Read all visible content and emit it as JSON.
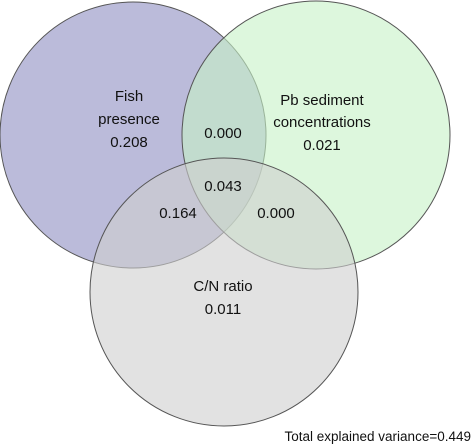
{
  "diagram": {
    "type": "venn",
    "sets": [
      {
        "key": "fish",
        "label_line1": "Fish",
        "label_line2": "presence",
        "value": "0.208",
        "fill": "#8e8ec2"
      },
      {
        "key": "pb",
        "label_line1": "Pb sediment",
        "label_line2": "concentrations",
        "value": "0.021",
        "fill": "#c6f2c6"
      },
      {
        "key": "cn",
        "label_line1": "C/N ratio",
        "value": "0.011",
        "fill": "#cfcfcf"
      }
    ],
    "intersections": {
      "fish_pb": "0.000",
      "fish_cn": "0.164",
      "pb_cn": "0.000",
      "all_three": "0.043"
    },
    "total_label": "Total explained variance=0.449",
    "stroke_color": "#555555"
  }
}
